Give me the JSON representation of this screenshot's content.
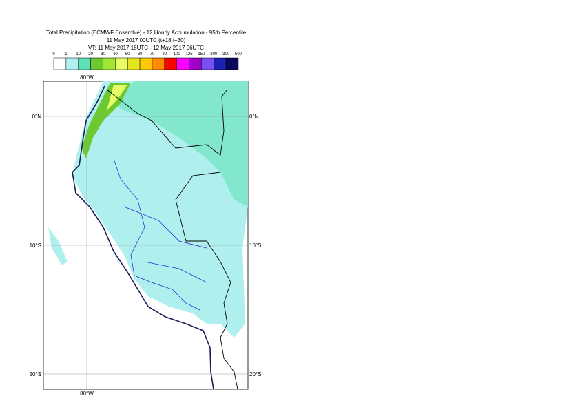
{
  "header": {
    "title": "Total Precipitation (ECMWF Ensemble) - 12 Hourly Accumulation - 95th Percentile",
    "run": "11 May 2017 00UTC (t+18,t+30)",
    "valid": "VT: 11 May 2017 18UTC - 12 May 2017 06UTC"
  },
  "legend": {
    "labels": [
      "0",
      "1",
      "10",
      "20",
      "30",
      "40",
      "50",
      "60",
      "70",
      "80",
      "100",
      "125",
      "150",
      "200",
      "300",
      "500"
    ],
    "colors": [
      "#ffffff",
      "#aff0ee",
      "#5fe0b4",
      "#6ec832",
      "#a0e632",
      "#e6ff64",
      "#e6e61e",
      "#ffc800",
      "#ff8c00",
      "#ff0000",
      "#ff00ff",
      "#a000c8",
      "#7850f0",
      "#1e1eb4",
      "#0a0a5a"
    ]
  },
  "map": {
    "lat_labels": [
      "0°N",
      "10°S",
      "20°S"
    ],
    "lon_labels": [
      "80°W"
    ]
  }
}
